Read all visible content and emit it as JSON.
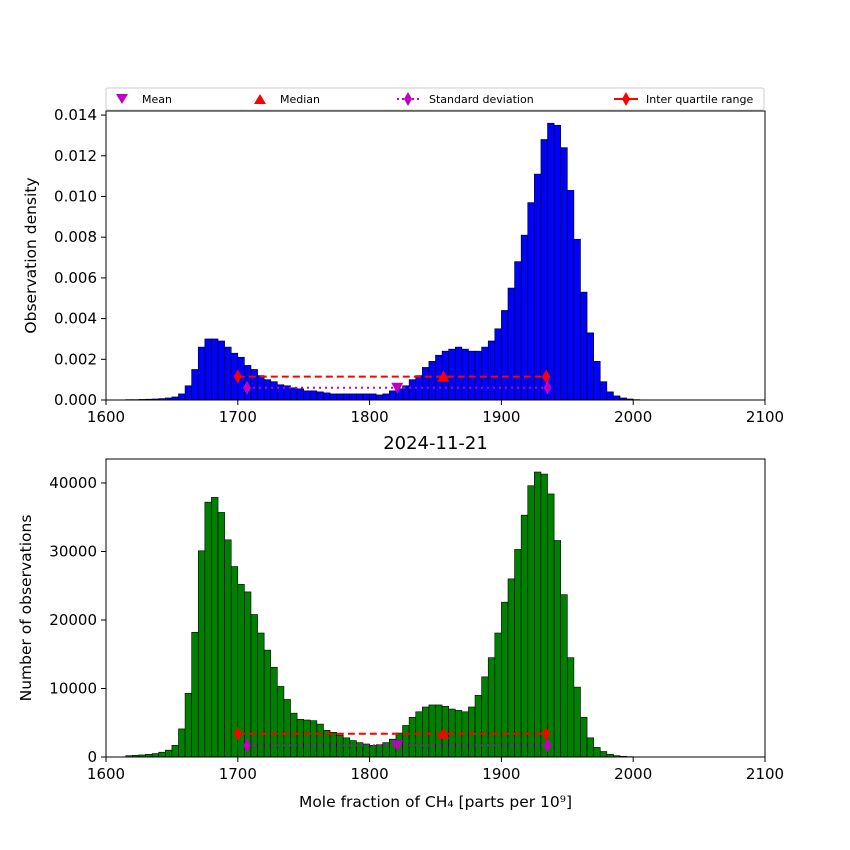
{
  "legend": {
    "entries": [
      {
        "key": "mean",
        "label": "Mean",
        "color": "#c000c0",
        "marker": "triangle-down"
      },
      {
        "key": "median",
        "label": "Median",
        "color": "#ff0000",
        "marker": "triangle-up"
      },
      {
        "key": "std",
        "label": "Standard deviation",
        "color": "#c000c0",
        "marker": "diamond",
        "line": "dotted"
      },
      {
        "key": "iqr",
        "label": "Inter quartile range",
        "color": "#ff0000",
        "marker": "diamond",
        "line": "solid"
      }
    ]
  },
  "chart_data": [
    {
      "type": "bar",
      "title": "",
      "xlabel": "",
      "ylabel": "Observation density",
      "xlim": [
        1600,
        2100
      ],
      "ylim": [
        0,
        0.0142
      ],
      "xticks": [
        "1600",
        "1700",
        "1800",
        "1900",
        "2000",
        "2100"
      ],
      "yticks": [
        "0.000",
        "0.002",
        "0.004",
        "0.006",
        "0.008",
        "0.010",
        "0.012",
        "0.014"
      ],
      "bar_color": "#0000ff",
      "bin_width": 5,
      "bin_starts": [
        1615,
        1620,
        1625,
        1630,
        1635,
        1640,
        1645,
        1650,
        1655,
        1660,
        1665,
        1670,
        1675,
        1680,
        1685,
        1690,
        1695,
        1700,
        1705,
        1710,
        1715,
        1720,
        1725,
        1730,
        1735,
        1740,
        1745,
        1750,
        1755,
        1760,
        1765,
        1770,
        1775,
        1780,
        1785,
        1790,
        1795,
        1800,
        1805,
        1810,
        1815,
        1820,
        1825,
        1830,
        1835,
        1840,
        1845,
        1850,
        1855,
        1860,
        1865,
        1870,
        1875,
        1880,
        1885,
        1890,
        1895,
        1900,
        1905,
        1910,
        1915,
        1920,
        1925,
        1930,
        1935,
        1940,
        1945,
        1950,
        1955,
        1960,
        1965,
        1970,
        1975,
        1980,
        1985,
        1990,
        1995,
        2000,
        2005,
        2010
      ],
      "values": [
        2e-05,
        2e-05,
        3e-05,
        4e-05,
        5e-05,
        7e-05,
        0.0001,
        0.00015,
        0.0003,
        0.0007,
        0.0015,
        0.0026,
        0.003,
        0.003,
        0.0029,
        0.0026,
        0.0023,
        0.0021,
        0.0017,
        0.0015,
        0.0012,
        0.001,
        0.0009,
        0.00075,
        0.0007,
        0.0006,
        0.00055,
        0.00045,
        0.00045,
        0.0004,
        0.00035,
        0.0003,
        0.0003,
        0.0003,
        0.0003,
        0.0003,
        0.0003,
        0.0003,
        0.00025,
        0.0003,
        0.00045,
        0.00055,
        0.0007,
        0.001,
        0.0012,
        0.0016,
        0.0019,
        0.0022,
        0.0024,
        0.0025,
        0.0026,
        0.0025,
        0.0024,
        0.0024,
        0.0026,
        0.0029,
        0.0035,
        0.0044,
        0.0055,
        0.0068,
        0.0081,
        0.0097,
        0.0111,
        0.0128,
        0.0136,
        0.0135,
        0.0124,
        0.0103,
        0.0079,
        0.0053,
        0.0033,
        0.0019,
        0.0009,
        0.0004,
        0.0002,
        0.0001,
        5e-05,
        2e-05,
        1e-05,
        5e-06
      ],
      "stats": {
        "mean": {
          "x": 1821,
          "y": 0.0006
        },
        "median": {
          "x": 1856,
          "y": 0.00115
        },
        "std": {
          "x": [
            1707,
            1935
          ],
          "y": 0.0006
        },
        "iqr": {
          "x": [
            1700,
            1934
          ],
          "y": 0.00115
        }
      }
    },
    {
      "type": "bar",
      "title": "2024-11-21",
      "xlabel": "Mole fraction of CH₄ [parts per 10⁹]",
      "ylabel": "Number of observations",
      "xlim": [
        1600,
        2100
      ],
      "ylim": [
        0,
        43500
      ],
      "xticks": [
        "1600",
        "1700",
        "1800",
        "1900",
        "2000",
        "2100"
      ],
      "yticks": [
        "0",
        "10000",
        "20000",
        "30000",
        "40000"
      ],
      "bar_color": "#008000",
      "bin_width": 5,
      "bin_starts": [
        1615,
        1620,
        1625,
        1630,
        1635,
        1640,
        1645,
        1650,
        1655,
        1660,
        1665,
        1670,
        1675,
        1680,
        1685,
        1690,
        1695,
        1700,
        1705,
        1710,
        1715,
        1720,
        1725,
        1730,
        1735,
        1740,
        1745,
        1750,
        1755,
        1760,
        1765,
        1770,
        1775,
        1780,
        1785,
        1790,
        1795,
        1800,
        1805,
        1810,
        1815,
        1820,
        1825,
        1830,
        1835,
        1840,
        1845,
        1850,
        1855,
        1860,
        1865,
        1870,
        1875,
        1880,
        1885,
        1890,
        1895,
        1900,
        1905,
        1910,
        1915,
        1920,
        1925,
        1930,
        1935,
        1940,
        1945,
        1950,
        1955,
        1960,
        1965,
        1970,
        1975,
        1980,
        1985,
        1990,
        1995,
        2000,
        2005,
        2010
      ],
      "values": [
        200,
        250,
        300,
        400,
        500,
        700,
        1000,
        1700,
        4100,
        9300,
        18200,
        30100,
        37200,
        37900,
        35700,
        31700,
        27800,
        25200,
        24100,
        20800,
        18100,
        15600,
        13100,
        10300,
        8400,
        6400,
        5500,
        5400,
        5300,
        4800,
        3900,
        3600,
        3200,
        2800,
        2400,
        2100,
        1900,
        1700,
        1800,
        2100,
        2600,
        3500,
        4600,
        5800,
        6600,
        7300,
        7600,
        7600,
        7400,
        7000,
        6800,
        6600,
        7300,
        9000,
        11700,
        14500,
        18100,
        22600,
        26000,
        30300,
        35300,
        39600,
        41600,
        41300,
        38400,
        31600,
        23700,
        14500,
        10200,
        5800,
        2800,
        1400,
        800,
        400,
        200,
        100,
        50,
        20,
        10,
        5
      ],
      "stats": {
        "mean": {
          "x": 1821,
          "y": 1700
        },
        "median": {
          "x": 1856,
          "y": 3400
        },
        "std": {
          "x": [
            1707,
            1935
          ],
          "y": 1700
        },
        "iqr": {
          "x": [
            1700,
            1934
          ],
          "y": 3400
        }
      }
    }
  ]
}
